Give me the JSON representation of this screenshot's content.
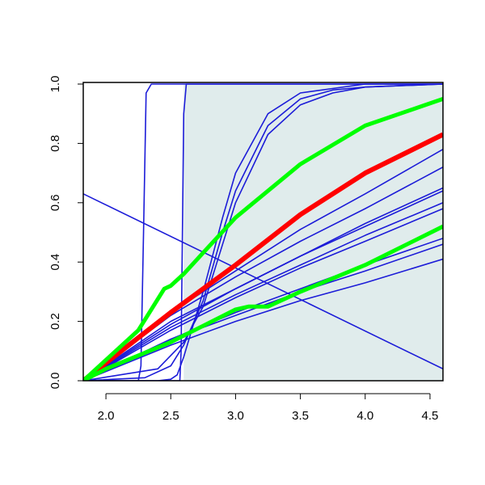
{
  "chart_data": {
    "type": "line",
    "xlim": [
      1.825,
      4.6
    ],
    "ylim": [
      0,
      1
    ],
    "xticks": [
      {
        "value": 2,
        "label": "2.0"
      },
      2.5,
      {
        "value": 3,
        "label": "3.0"
      },
      3.5,
      {
        "value": 4,
        "label": "4.0"
      },
      4.5
    ],
    "yticks": [
      {
        "value": 0,
        "label": "0.0"
      },
      0.2,
      0.4,
      0.6,
      0.8,
      {
        "value": 1,
        "label": "1.0"
      }
    ],
    "shade_x": [
      2.6,
      4.6
    ],
    "shade_color": "#e0ecec",
    "series": [
      {
        "color": "#1c1cd8",
        "width": 1.6,
        "x": [
          1.825,
          2.25,
          2.27,
          2.29,
          2.31,
          2.35,
          4.6
        ],
        "values": [
          0,
          0,
          0.05,
          0.5,
          0.97,
          1,
          1
        ]
      },
      {
        "color": "#1c1cd8",
        "width": 1.6,
        "x": [
          1.825,
          2.57,
          2.58,
          2.6,
          2.62,
          4.6
        ],
        "values": [
          0,
          0,
          0.1,
          0.9,
          1,
          1
        ]
      },
      {
        "color": "#1c1cd8",
        "width": 1.6,
        "x": [
          1.825,
          2.2,
          2.4,
          2.5,
          2.55,
          2.6,
          2.75,
          2.9,
          3.0,
          3.25,
          3.5,
          4.0,
          4.6
        ],
        "values": [
          0,
          0,
          0,
          0.005,
          0.02,
          0.08,
          0.3,
          0.55,
          0.7,
          0.9,
          0.97,
          1,
          1
        ]
      },
      {
        "color": "#1c1cd8",
        "width": 1.6,
        "x": [
          1.825,
          2.3,
          2.5,
          2.6,
          2.75,
          2.9,
          3.0,
          3.25,
          3.5,
          3.75,
          4.0,
          4.6
        ],
        "values": [
          0,
          0.01,
          0.05,
          0.12,
          0.27,
          0.5,
          0.64,
          0.86,
          0.95,
          0.98,
          0.99,
          1
        ]
      },
      {
        "color": "#1c1cd8",
        "width": 1.6,
        "x": [
          1.825,
          2.4,
          2.6,
          2.75,
          2.9,
          3.0,
          3.25,
          3.5,
          3.75,
          4.0,
          4.6
        ],
        "values": [
          0,
          0.04,
          0.13,
          0.25,
          0.46,
          0.6,
          0.83,
          0.93,
          0.97,
          0.99,
          1
        ]
      },
      {
        "color": "#1c1cd8",
        "width": 1.6,
        "x": [
          1.825,
          4.6
        ],
        "values": [
          0.63,
          0.04
        ]
      },
      {
        "color": "#1c1cd8",
        "width": 1.6,
        "x": [
          1.825,
          2.5,
          3.0,
          3.5,
          4.0,
          4.6
        ],
        "values": [
          0,
          0.23,
          0.37,
          0.51,
          0.63,
          0.78
        ]
      },
      {
        "color": "#1c1cd8",
        "width": 1.6,
        "x": [
          1.825,
          2.5,
          3.0,
          3.5,
          4.0,
          4.6
        ],
        "values": [
          0,
          0.22,
          0.35,
          0.47,
          0.58,
          0.72
        ]
      },
      {
        "color": "#1c1cd8",
        "width": 1.6,
        "x": [
          1.825,
          2.5,
          3.0,
          3.5,
          4.0,
          4.6
        ],
        "values": [
          0,
          0.2,
          0.31,
          0.42,
          0.53,
          0.65
        ]
      },
      {
        "color": "#1c1cd8",
        "width": 1.6,
        "x": [
          1.825,
          2.5,
          3.0,
          3.5,
          4.0,
          4.6
        ],
        "values": [
          0,
          0.19,
          0.31,
          0.42,
          0.52,
          0.64
        ]
      },
      {
        "color": "#1c1cd8",
        "width": 1.6,
        "x": [
          1.825,
          2.5,
          3.0,
          3.5,
          4.0,
          4.6
        ],
        "values": [
          0,
          0.18,
          0.29,
          0.39,
          0.49,
          0.6
        ]
      },
      {
        "color": "#1c1cd8",
        "width": 1.6,
        "x": [
          1.825,
          2.5,
          3.0,
          3.5,
          4.0,
          4.6
        ],
        "values": [
          0,
          0.17,
          0.28,
          0.38,
          0.47,
          0.58
        ]
      },
      {
        "color": "#1c1cd8",
        "width": 1.6,
        "x": [
          1.825,
          2.5,
          3.0,
          3.5,
          4.0,
          4.6
        ],
        "values": [
          0,
          0.14,
          0.23,
          0.31,
          0.39,
          0.48
        ]
      },
      {
        "color": "#1c1cd8",
        "width": 1.6,
        "x": [
          1.825,
          2.5,
          3.0,
          3.5,
          4.0,
          4.6
        ],
        "values": [
          0,
          0.14,
          0.22,
          0.3,
          0.37,
          0.46
        ]
      },
      {
        "color": "#1c1cd8",
        "width": 1.6,
        "x": [
          1.825,
          2.5,
          3.0,
          3.5,
          4.0,
          4.6
        ],
        "values": [
          0,
          0.12,
          0.2,
          0.27,
          0.33,
          0.41
        ]
      },
      {
        "color": "#ff0000",
        "width": 6,
        "x": [
          1.825,
          2.0,
          2.5,
          3.0,
          3.5,
          4.0,
          4.6
        ],
        "values": [
          0,
          0.06,
          0.23,
          0.39,
          0.56,
          0.7,
          0.83
        ]
      },
      {
        "color": "#00ff00",
        "width": 5,
        "x": [
          1.825,
          2.0,
          2.25,
          2.45,
          2.5,
          2.6,
          3.0,
          3.5,
          4.0,
          4.6
        ],
        "values": [
          0,
          0.07,
          0.17,
          0.31,
          0.32,
          0.36,
          0.55,
          0.73,
          0.86,
          0.95
        ]
      },
      {
        "color": "#00ff00",
        "width": 5,
        "x": [
          1.825,
          2.0,
          2.5,
          3.0,
          3.1,
          3.25,
          3.5,
          4.0,
          4.6
        ],
        "values": [
          0,
          0.04,
          0.13,
          0.24,
          0.25,
          0.25,
          0.3,
          0.39,
          0.52
        ]
      }
    ]
  }
}
